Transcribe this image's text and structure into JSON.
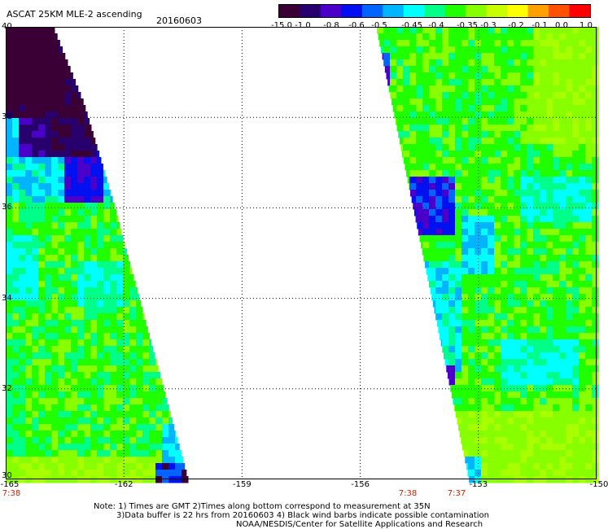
{
  "header": {
    "title": "ASCAT 25KM MLE-2 ascending",
    "date": "20160603"
  },
  "colorbar": {
    "labels": [
      "-15.0",
      "-1.0",
      "-0.8",
      "-0.6",
      "-0.5",
      "-0.45",
      "-0.4",
      "-0.35",
      "-0.3",
      "-0.2",
      "-0.1",
      "0.0",
      "1.0"
    ],
    "colors": [
      "#3a0036",
      "#28006e",
      "#4a00c8",
      "#0010f0",
      "#0064ff",
      "#00b4ff",
      "#00ffff",
      "#00ff88",
      "#20ff00",
      "#88ff00",
      "#c8ff00",
      "#ffff00",
      "#ffa000",
      "#ff5000",
      "#ff0000"
    ]
  },
  "axes": {
    "x_ticks": [
      "-165",
      "-162",
      "-159",
      "-156",
      "-153",
      "-150"
    ],
    "y_ticks": [
      "40",
      "38",
      "36",
      "34",
      "32",
      "30"
    ],
    "x_range": [
      -165,
      -150
    ],
    "y_range": [
      30,
      40
    ],
    "grid": true
  },
  "time_labels": [
    "7:38",
    "7:38",
    "7:37"
  ],
  "notes": {
    "line1": "Note: 1) Times are GMT 2)Times along bottom correspond to measurement at 35N",
    "line2": "3)Data buffer is 22 hrs from 20160603 4) Black wind barbs indicate possible contamination",
    "line3": "NOAA/NESDIS/Center for Satellite Applications and Research"
  }
}
